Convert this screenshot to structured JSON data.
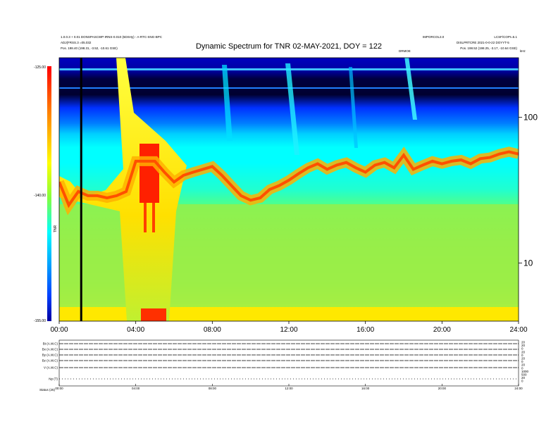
{
  "header": {
    "title": "Dynamic Spectrum for TNR 02-MAY-2021, DOY = 122",
    "left_line1": "1.0.0.3 + 0.01 DONSPASCWP-IRNS-0.010 (5DSHy) - A-RTC-SNG-BPC",
    "left_line2": "ADJ(FRSS.3 =05.032",
    "left_line3": "Pos. 198.40 (198.31, -3.52, -10.61 GSE)",
    "right_line1": "IMPORCOL3.0",
    "right_line2": "LCSF/COPI=5.1",
    "right_line3": "DISLPRTCRE 2021-0-0-22 DOYYT-5",
    "right_line4": "Pos. 198.52 (198.25, -3.17, -10.64 GSE)",
    "mid_label": "DRMOE",
    "corner_label": "kHz"
  },
  "colorbar": {
    "max_label": "-125.00",
    "mid_label": "-140.00",
    "min_label": "-155.00",
    "unit_label": "TNR",
    "stops": [
      "#ff0000",
      "#ff8000",
      "#ffff00",
      "#80ff40",
      "#00ffff",
      "#00a0ff",
      "#0040ff",
      "#0000a0"
    ]
  },
  "chart_data": {
    "type": "heatmap",
    "title": "Dynamic Spectrum for TNR 02-MAY-2021, DOY = 122",
    "x_ticks": [
      "00:00",
      "04:00",
      "08:00",
      "12:00",
      "16:00",
      "20:00",
      "24:00"
    ],
    "xlim_hours": [
      0,
      24
    ],
    "y_ticks": [
      "100",
      "10"
    ],
    "y_tick_values_khz": [
      100,
      10
    ],
    "y_scale": "log",
    "ylim_khz": [
      4,
      256
    ],
    "color_range_db": [
      -155,
      -125
    ],
    "plasma_line": {
      "hours": [
        0,
        0.5,
        1,
        1.5,
        2,
        2.5,
        3,
        3.5,
        4,
        4.5,
        5,
        5.5,
        6,
        6.5,
        7,
        7.5,
        8,
        8.5,
        9,
        9.5,
        10,
        10.5,
        11,
        11.5,
        12,
        12.5,
        13,
        13.5,
        14,
        14.5,
        15,
        15.5,
        16,
        16.5,
        17,
        17.5,
        18,
        18.5,
        19,
        19.5,
        20,
        20.5,
        21,
        21.5,
        22,
        22.5,
        23,
        23.5,
        24
      ],
      "khz": [
        36,
        25,
        31,
        29,
        29,
        28,
        29,
        31,
        50,
        50,
        50,
        42,
        36,
        40,
        42,
        44,
        46,
        40,
        34,
        29,
        27,
        28,
        32,
        34,
        37,
        41,
        45,
        48,
        44,
        47,
        49,
        45,
        42,
        47,
        49,
        45,
        55,
        44,
        47,
        50,
        48,
        50,
        51,
        48,
        52,
        53,
        56,
        58,
        56
      ]
    },
    "vertical_marker_hours": [
      1.15
    ]
  },
  "bottom_panel": {
    "labels": [
      "Bt (A.W.C)",
      "Bx (A.W.C)",
      "By (A.W.C)",
      "Bz (A.W.C)",
      "V (A.W.C)",
      "Np (T)"
    ],
    "footer_label": "Status  (25)",
    "x_ticks": [
      "00:00",
      "04:00",
      "08:00",
      "12:00",
      "16:00",
      "20:00",
      "24:00"
    ],
    "right_ticks": [
      "20",
      "20",
      "0",
      "20",
      "0",
      "20",
      "0",
      "20",
      "0",
      "1000",
      "500",
      "20",
      "0"
    ]
  }
}
